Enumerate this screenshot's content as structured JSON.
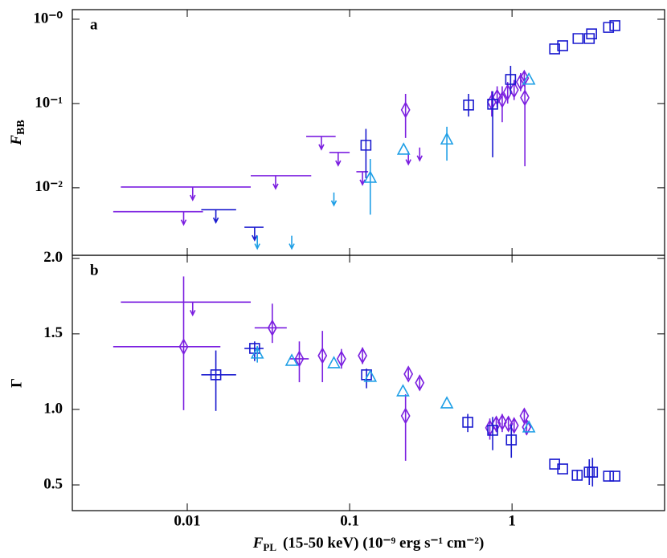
{
  "chart_data": [
    {
      "type": "scatter",
      "label": "a",
      "ylabel": {
        "symbol": "F",
        "subscript": "BB"
      },
      "log_x": true,
      "log_y": true,
      "xlim": [
        0.00196,
        8.7
      ],
      "xticks": [
        0.01,
        0.1,
        1
      ],
      "ylim": [
        0.00158,
        1.3
      ],
      "yticks": [
        {
          "value": 1,
          "label": "10⁻⁰"
        },
        {
          "value": 0.1,
          "label": "10⁻¹"
        },
        {
          "value": 0.01,
          "label": "10⁻²"
        }
      ],
      "series": [
        {
          "color": "#7b1fe0",
          "marker": "diamond",
          "x": [
            0.221,
            0.75,
            0.81,
            0.87,
            0.94,
            1.03,
            1.13,
            1.19,
            1.2
          ],
          "values": [
            0.084,
            0.104,
            0.119,
            0.111,
            0.136,
            0.145,
            0.18,
            0.2,
            0.117
          ],
          "ylo": [
            0.039,
            0.07,
            0.09,
            0.06,
            0.1,
            0.11,
            0.14,
            0.16,
            0.018
          ],
          "yhi": [
            0.13,
            0.14,
            0.16,
            0.16,
            0.18,
            0.19,
            0.23,
            0.24,
            0.2
          ]
        },
        {
          "color": "#7b1fe0",
          "upper_limit": true,
          "x": [
            0.0108,
            0.0095,
            0.035,
            0.067,
            0.085,
            0.12,
            0.23,
            0.27
          ],
          "values": [
            0.0102,
            0.0052,
            0.0139,
            0.0407,
            0.0262,
            0.0155,
            0.027,
            0.03
          ],
          "xlo": [
            0.0039,
            0.0035,
            0.0246,
            0.054,
            0.075,
            0.11,
            null,
            null
          ],
          "xhi": [
            0.0246,
            0.0125,
            0.058,
            0.082,
            0.1,
            0.13,
            null,
            null
          ]
        },
        {
          "color": "#1b1bcf",
          "marker": "square",
          "x": [
            0.126,
            0.54,
            0.76,
            0.98,
            1.83,
            2.05,
            2.55,
            2.99,
            3.09,
            3.93,
            4.3
          ],
          "values": [
            0.032,
            0.096,
            0.098,
            0.193,
            0.444,
            0.485,
            0.59,
            0.59,
            0.67,
            0.8,
            0.84
          ],
          "ylo": [
            0.013,
            0.07,
            0.023,
            0.13,
            null,
            null,
            null,
            null,
            null,
            null,
            null
          ],
          "yhi": [
            0.05,
            0.13,
            0.14,
            0.28,
            null,
            null,
            null,
            null,
            null,
            null,
            null
          ]
        },
        {
          "color": "#1b1bcf",
          "upper_limit": true,
          "x": [
            0.015,
            0.026
          ],
          "values": [
            0.0055,
            0.0034
          ],
          "xlo": [
            0.0122,
            0.0225
          ],
          "xhi": [
            0.02,
            0.0295
          ]
        },
        {
          "color": "#1e9fe6",
          "marker": "triangle",
          "x": [
            0.134,
            0.215,
            0.397,
            1.27
          ],
          "values": [
            0.013,
            0.028,
            0.037,
            0.19
          ],
          "ylo": [
            0.0048,
            null,
            0.021,
            null
          ],
          "yhi": [
            0.022,
            null,
            0.053,
            null
          ]
        },
        {
          "color": "#1e9fe6",
          "upper_limit": true,
          "x": [
            0.027,
            0.044,
            0.08
          ],
          "values": [
            0.0027,
            0.0027,
            0.0088
          ]
        }
      ]
    },
    {
      "type": "scatter",
      "label": "b",
      "ylabel": "Γ",
      "xlabel": {
        "symbol": "F",
        "subscript": "PL",
        "text": "(15-50 keV) (10⁻⁹ erg s⁻¹ cm⁻²)"
      },
      "log_x": true,
      "log_y": false,
      "xlim": [
        0.00196,
        8.7
      ],
      "xticks": [
        0.01,
        0.1,
        1
      ],
      "ylim": [
        0.33,
        2.02
      ],
      "yticks": [
        {
          "value": 2,
          "label": "2.0"
        },
        1.5,
        {
          "value": 1,
          "label": "1.0"
        },
        0.5
      ],
      "series": [
        {
          "color": "#7b1fe0",
          "marker": "diamond",
          "x": [
            0.0095,
            0.0334,
            0.049,
            0.068,
            0.089,
            0.12,
            0.221,
            0.23,
            0.27,
            0.73,
            0.8,
            0.87,
            0.95,
            1.03,
            1.19,
            1.23
          ],
          "values": [
            1.415,
            1.54,
            1.335,
            1.356,
            1.335,
            1.356,
            0.957,
            1.234,
            1.176,
            0.878,
            0.904,
            0.915,
            0.904,
            0.894,
            0.957,
            0.883
          ],
          "ylo": [
            0.995,
            1.44,
            1.18,
            1.18,
            1.27,
            1.3,
            0.66,
            1.2,
            1.14,
            0.8,
            0.85,
            0.85,
            0.86,
            0.85,
            0.9,
            0.83
          ],
          "yhi": [
            1.88,
            1.7,
            1.45,
            1.52,
            1.4,
            1.41,
            1.1,
            1.27,
            1.21,
            0.94,
            0.95,
            0.97,
            0.95,
            0.94,
            1.0,
            0.93
          ],
          "xlo": [
            0.0035,
            0.026,
            0.043,
            null,
            null,
            null,
            null,
            null,
            null,
            null,
            null,
            null,
            null,
            null,
            null,
            null
          ],
          "xhi": [
            0.016,
            0.041,
            0.056,
            null,
            null,
            null,
            null,
            null,
            null,
            null,
            null,
            null,
            null,
            null,
            null,
            null
          ]
        },
        {
          "color": "#7b1fe0",
          "upper_limit": true,
          "x": [
            0.0108
          ],
          "values": [
            1.71
          ],
          "xlo": [
            0.0039
          ],
          "xhi": [
            0.0246
          ]
        },
        {
          "color": "#1b1bcf",
          "marker": "square",
          "x": [
            0.015,
            0.026,
            0.127,
            0.534,
            0.76,
            0.99,
            1.83,
            2.05,
            2.52,
            2.99,
            3.13,
            3.93,
            4.3
          ],
          "values": [
            1.229,
            1.404,
            1.229,
            0.915,
            0.862,
            0.798,
            0.638,
            0.606,
            0.564,
            0.585,
            0.585,
            0.558,
            0.558
          ],
          "ylo": [
            0.99,
            1.32,
            1.14,
            0.85,
            0.73,
            0.68,
            null,
            null,
            0.53,
            0.5,
            0.49,
            null,
            null
          ],
          "yhi": [
            1.39,
            1.45,
            1.27,
            0.97,
            0.95,
            0.9,
            null,
            null,
            0.6,
            0.67,
            0.68,
            null,
            null
          ],
          "xlo": [
            0.0122,
            0.0225,
            null,
            null,
            null,
            null,
            null,
            null,
            null,
            null,
            null,
            null,
            null
          ],
          "xhi": [
            0.02,
            0.0295,
            null,
            null,
            null,
            null,
            null,
            null,
            null,
            null,
            null,
            null,
            null
          ]
        },
        {
          "color": "#1e9fe6",
          "marker": "triangle",
          "x": [
            0.027,
            0.044,
            0.08,
            0.134,
            0.213,
            0.397,
            1.27
          ],
          "values": [
            1.367,
            1.319,
            1.303,
            1.213,
            1.117,
            1.037,
            0.878
          ],
          "ylo": [
            1.31,
            null,
            null,
            null,
            null,
            null,
            null
          ],
          "yhi": [
            1.42,
            null,
            null,
            null,
            null,
            null,
            null
          ]
        }
      ]
    }
  ]
}
